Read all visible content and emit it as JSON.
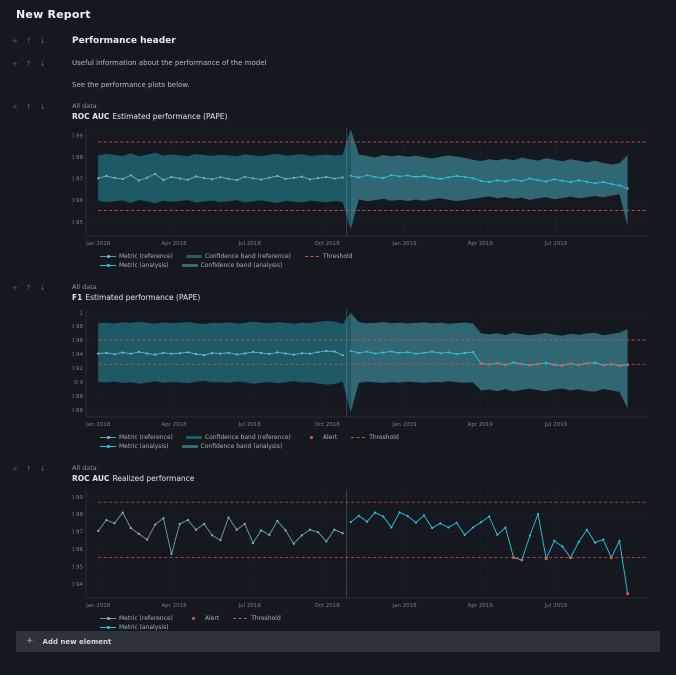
{
  "page": {
    "title": "New Report",
    "controls": {
      "add": "+",
      "up": "↑",
      "down": "↓"
    },
    "add_element_label": "Add new element"
  },
  "elements": {
    "header_text": "Performance header",
    "paragraph1": "Useful information about the performance of the model",
    "paragraph2": "See the performance plots below."
  },
  "colors": {
    "background": "#15181e",
    "grid": "#232834",
    "axis": "#2c323d",
    "tick_text": "#76818f",
    "divider": "#8d97a5",
    "band_reference": "#1f5d6a",
    "band_analysis": "#336b77",
    "metric_reference": "#74bdd1",
    "metric_analysis": "#29c5e6",
    "threshold": "#cc5349",
    "alert": "#e4564d"
  },
  "chart_data": [
    {
      "type": "line",
      "eyebrow": "All data",
      "title_bold": "ROC AUC",
      "title_rest": "Estimated performance (PAPE)",
      "ylim": [
        0.9435,
        0.9935
      ],
      "yticks": [
        0.95,
        0.96,
        0.97,
        0.98,
        0.99
      ],
      "xticks": [
        {
          "label": "Jan 2018",
          "i": 0
        },
        {
          "label": "Apr 2018",
          "i": 9.3
        },
        {
          "label": "Jul 2018",
          "i": 18.6
        },
        {
          "label": "Oct 2018",
          "i": 28.1
        },
        {
          "label": "Jan 2019",
          "i": 37.6
        },
        {
          "label": "Apr 2019",
          "i": 46.9
        },
        {
          "label": "Jul 2019",
          "i": 56.2
        }
      ],
      "divider_i": 30.5,
      "threshold_upper": 0.987,
      "threshold_lower": 0.9553,
      "metric": [
        0.9702,
        0.9713,
        0.9704,
        0.9699,
        0.9716,
        0.9692,
        0.9705,
        0.9722,
        0.9694,
        0.9708,
        0.9701,
        0.9695,
        0.9711,
        0.9703,
        0.9698,
        0.9707,
        0.97,
        0.9694,
        0.9709,
        0.9702,
        0.9696,
        0.9705,
        0.9713,
        0.9699,
        0.9704,
        0.971,
        0.9697,
        0.9703,
        0.9708,
        0.9701,
        0.9706,
        0.9714,
        0.9706,
        0.9716,
        0.9709,
        0.9703,
        0.9717,
        0.9711,
        0.9715,
        0.9708,
        0.9713,
        0.9705,
        0.9699,
        0.9707,
        0.9713,
        0.9709,
        0.9702,
        0.969,
        0.9685,
        0.9693,
        0.9688,
        0.9696,
        0.9689,
        0.9701,
        0.9693,
        0.9687,
        0.9698,
        0.9691,
        0.9684,
        0.9693,
        0.9686,
        0.9679,
        0.9685,
        0.9676,
        0.9669,
        0.9655
      ],
      "band_upper": [
        0.9808,
        0.9815,
        0.981,
        0.9806,
        0.9818,
        0.9804,
        0.9812,
        0.982,
        0.9807,
        0.9813,
        0.9809,
        0.9805,
        0.9814,
        0.981,
        0.9806,
        0.9812,
        0.9808,
        0.9804,
        0.9813,
        0.9809,
        0.9805,
        0.9811,
        0.9816,
        0.9807,
        0.981,
        0.9814,
        0.9806,
        0.9809,
        0.9812,
        0.9808,
        0.9811,
        0.993,
        0.9812,
        0.9806,
        0.9799,
        0.981,
        0.9804,
        0.9809,
        0.9801,
        0.9807,
        0.9799,
        0.9794,
        0.9801,
        0.9808,
        0.9803,
        0.9796,
        0.9788,
        0.9782,
        0.979,
        0.9785,
        0.9793,
        0.9786,
        0.9798,
        0.979,
        0.9784,
        0.9795,
        0.9788,
        0.9781,
        0.979,
        0.9783,
        0.9776,
        0.9783,
        0.9773,
        0.9766,
        0.9772,
        0.981
      ],
      "band_lower": [
        0.9598,
        0.9592,
        0.9596,
        0.96,
        0.9588,
        0.9602,
        0.9595,
        0.9586,
        0.9599,
        0.9593,
        0.9597,
        0.9601,
        0.959,
        0.9595,
        0.9599,
        0.9592,
        0.9596,
        0.9601,
        0.9591,
        0.9595,
        0.96,
        0.9593,
        0.9588,
        0.9598,
        0.9594,
        0.959,
        0.9599,
        0.9595,
        0.9591,
        0.9597,
        0.9593,
        0.9465,
        0.9605,
        0.9596,
        0.9601,
        0.9607,
        0.9598,
        0.9603,
        0.9597,
        0.9604,
        0.9598,
        0.9605,
        0.961,
        0.9603,
        0.9597,
        0.9601,
        0.9607,
        0.9613,
        0.9618,
        0.961,
        0.9615,
        0.9607,
        0.9613,
        0.9602,
        0.9609,
        0.9615,
        0.9605,
        0.9611,
        0.9617,
        0.9609,
        0.9614,
        0.962,
        0.9614,
        0.9622,
        0.9628,
        0.948
      ],
      "alerts": [],
      "legend_rows": [
        [
          {
            "sw": "ref-line",
            "label": "Metric (reference)"
          },
          {
            "sw": "ref-band",
            "label": "Confidence band (reference)"
          },
          {
            "sw": "threshold",
            "label": "Threshold"
          }
        ],
        [
          {
            "sw": "ana-line",
            "label": "Metric (analysis)"
          },
          {
            "sw": "ana-band",
            "label": "Confidence band (analysis)"
          }
        ]
      ]
    },
    {
      "type": "line",
      "eyebrow": "All data",
      "title_bold": "F1",
      "title_rest": "Estimated performance (PAPE)",
      "ylim": [
        0.85,
        1.005
      ],
      "yticks": [
        0.86,
        0.88,
        0.9,
        0.92,
        0.94,
        0.96,
        0.98,
        1
      ],
      "xticks": [
        {
          "label": "Jan 2018",
          "i": 0
        },
        {
          "label": "Apr 2018",
          "i": 9.3
        },
        {
          "label": "Jul 2018",
          "i": 18.6
        },
        {
          "label": "Oct 2018",
          "i": 28.1
        },
        {
          "label": "Jan 2019",
          "i": 37.6
        },
        {
          "label": "Apr 2019",
          "i": 46.9
        },
        {
          "label": "Jul 2019",
          "i": 56.2
        }
      ],
      "divider_i": 30.5,
      "threshold_upper": 0.9605,
      "threshold_lower": 0.9256,
      "metric": [
        0.941,
        0.9418,
        0.9402,
        0.9425,
        0.9408,
        0.9435,
        0.9412,
        0.9396,
        0.9421,
        0.9407,
        0.9415,
        0.9428,
        0.9404,
        0.939,
        0.9417,
        0.941,
        0.9423,
        0.9398,
        0.9412,
        0.9435,
        0.9419,
        0.9405,
        0.9427,
        0.9411,
        0.9394,
        0.9416,
        0.9408,
        0.943,
        0.9447,
        0.944,
        0.9389,
        0.9448,
        0.9421,
        0.9438,
        0.9412,
        0.9425,
        0.944,
        0.9418,
        0.9431,
        0.9409,
        0.9422,
        0.9437,
        0.9415,
        0.9427,
        0.9403,
        0.9419,
        0.9433,
        0.9268,
        0.9255,
        0.9272,
        0.9248,
        0.9282,
        0.926,
        0.9243,
        0.9259,
        0.9276,
        0.9251,
        0.9238,
        0.9266,
        0.9247,
        0.9272,
        0.928,
        0.9244,
        0.9259,
        0.9235,
        0.9251
      ],
      "band_upper": [
        0.9848,
        0.9855,
        0.9842,
        0.9861,
        0.985,
        0.9868,
        0.9853,
        0.984,
        0.9858,
        0.9847,
        0.9852,
        0.9863,
        0.9845,
        0.9835,
        0.9854,
        0.9849,
        0.986,
        0.9841,
        0.9851,
        0.9869,
        0.9856,
        0.9846,
        0.9862,
        0.9852,
        0.9838,
        0.9855,
        0.9848,
        0.9865,
        0.9878,
        0.9872,
        0.9836,
        0.9995,
        0.986,
        0.9845,
        0.9851,
        0.9862,
        0.9848,
        0.9855,
        0.9842,
        0.985,
        0.9858,
        0.9846,
        0.9853,
        0.9838,
        0.9848,
        0.9856,
        0.9844,
        0.97,
        0.9685,
        0.9702,
        0.9676,
        0.971,
        0.9688,
        0.9672,
        0.969,
        0.9705,
        0.968,
        0.9668,
        0.9695,
        0.9678,
        0.97,
        0.9708,
        0.9672,
        0.969,
        0.9712,
        0.976
      ],
      "band_lower": [
        0.9002,
        0.8995,
        0.901,
        0.8988,
        0.9,
        0.8978,
        0.8995,
        0.9012,
        0.899,
        0.9003,
        0.8997,
        0.8985,
        0.9005,
        0.9018,
        0.8996,
        0.9002,
        0.899,
        0.9011,
        0.9,
        0.8976,
        0.8992,
        0.9004,
        0.8984,
        0.8998,
        0.9015,
        0.8994,
        0.9001,
        0.898,
        0.8965,
        0.8972,
        0.901,
        0.856,
        0.899,
        0.9006,
        0.8998,
        0.8988,
        0.9002,
        0.8994,
        0.9008,
        0.8999,
        0.899,
        0.9003,
        0.8996,
        0.9012,
        0.9001,
        0.8992,
        0.9,
        0.888,
        0.8895,
        0.8872,
        0.89,
        0.8866,
        0.889,
        0.8905,
        0.8885,
        0.887,
        0.8896,
        0.8908,
        0.888,
        0.8898,
        0.8872,
        0.8865,
        0.8902,
        0.8882,
        0.886,
        0.862
      ],
      "alerts": [
        47,
        48,
        49,
        50,
        52,
        53,
        54,
        56,
        57,
        58,
        59,
        60,
        62,
        63,
        64,
        65
      ],
      "legend_rows": [
        [
          {
            "sw": "ref-line",
            "label": "Metric (reference)"
          },
          {
            "sw": "ref-band",
            "label": "Confidence band (reference)"
          },
          {
            "sw": "alert",
            "label": "Alert"
          },
          {
            "sw": "threshold",
            "label": "Threshold"
          }
        ],
        [
          {
            "sw": "ana-line",
            "label": "Metric (analysis)"
          },
          {
            "sw": "ana-band",
            "label": "Confidence band (analysis)"
          }
        ]
      ]
    },
    {
      "type": "line",
      "eyebrow": "All data",
      "title_bold": "ROC AUC",
      "title_rest": "Realized performance",
      "ylim": [
        0.932,
        0.994
      ],
      "yticks": [
        0.94,
        0.95,
        0.96,
        0.97,
        0.98,
        0.99
      ],
      "xticks": [
        {
          "label": "Jan 2018",
          "i": 0
        },
        {
          "label": "Apr 2018",
          "i": 9.3
        },
        {
          "label": "Jul 2018",
          "i": 18.6
        },
        {
          "label": "Oct 2018",
          "i": 28.1
        },
        {
          "label": "Jan 2019",
          "i": 37.6
        },
        {
          "label": "Apr 2019",
          "i": 46.9
        },
        {
          "label": "Jul 2019",
          "i": 56.2
        }
      ],
      "divider_i": 30.5,
      "threshold_upper": 0.987,
      "threshold_lower": 0.9553,
      "metric": [
        0.9705,
        0.9768,
        0.9749,
        0.981,
        0.9722,
        0.9688,
        0.9655,
        0.9742,
        0.9778,
        0.9573,
        0.9745,
        0.9768,
        0.9712,
        0.9745,
        0.968,
        0.9652,
        0.9782,
        0.9712,
        0.9745,
        0.9635,
        0.9708,
        0.9682,
        0.9762,
        0.9708,
        0.9632,
        0.968,
        0.9712,
        0.9698,
        0.9645,
        0.9712,
        0.9692,
        0.9755,
        0.9792,
        0.9758,
        0.981,
        0.9788,
        0.9725,
        0.9812,
        0.979,
        0.9752,
        0.9795,
        0.9722,
        0.9748,
        0.9725,
        0.9752,
        0.9682,
        0.9725,
        0.9755,
        0.9788,
        0.9682,
        0.9725,
        0.9552,
        0.9538,
        0.9678,
        0.9802,
        0.9545,
        0.9648,
        0.9615,
        0.9552,
        0.9642,
        0.9712,
        0.9638,
        0.9655,
        0.9552,
        0.9648,
        0.9345
      ],
      "alerts": [
        51,
        52,
        55,
        58,
        63,
        65
      ],
      "legend_rows": [
        [
          {
            "sw": "ref-line",
            "label": "Metric (reference)"
          },
          {
            "sw": "alert",
            "label": "Alert"
          },
          {
            "sw": "threshold",
            "label": "Threshold"
          }
        ],
        [
          {
            "sw": "ana-line",
            "label": "Metric (analysis)"
          }
        ]
      ]
    }
  ]
}
